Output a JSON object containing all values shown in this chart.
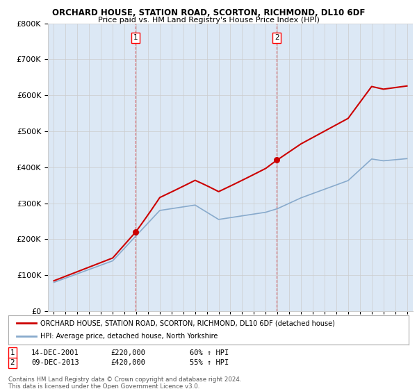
{
  "title": "ORCHARD HOUSE, STATION ROAD, SCORTON, RICHMOND, DL10 6DF",
  "subtitle": "Price paid vs. HM Land Registry's House Price Index (HPI)",
  "legend_line1": "ORCHARD HOUSE, STATION ROAD, SCORTON, RICHMOND, DL10 6DF (detached house)",
  "legend_line2": "HPI: Average price, detached house, North Yorkshire",
  "footnote": "Contains HM Land Registry data © Crown copyright and database right 2024.\nThis data is licensed under the Open Government Licence v3.0.",
  "sale1_label": "1",
  "sale1_date": "14-DEC-2001",
  "sale1_price": "£220,000",
  "sale1_hpi": "60% ↑ HPI",
  "sale1_year": 2001.95,
  "sale2_label": "2",
  "sale2_date": "09-DEC-2013",
  "sale2_price": "£420,000",
  "sale2_hpi": "55% ↑ HPI",
  "sale2_year": 2013.95,
  "ylim": [
    0,
    800000
  ],
  "xlim": [
    1994.5,
    2025.5
  ],
  "red_color": "#cc0000",
  "blue_color": "#88aacc",
  "dashed_color": "#cc0000",
  "background_color": "#ffffff",
  "grid_color": "#cccccc"
}
